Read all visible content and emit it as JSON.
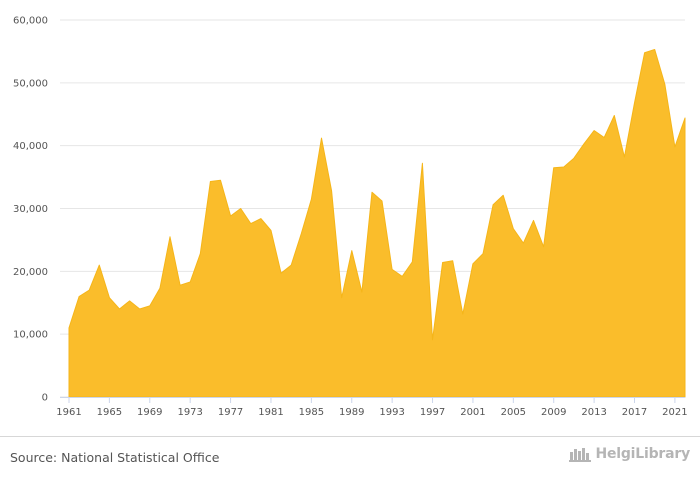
{
  "chart_data": {
    "type": "area",
    "x": [
      1961,
      1962,
      1963,
      1964,
      1965,
      1966,
      1967,
      1968,
      1969,
      1970,
      1971,
      1972,
      1973,
      1974,
      1975,
      1976,
      1977,
      1978,
      1979,
      1980,
      1981,
      1982,
      1983,
      1984,
      1985,
      1986,
      1987,
      1988,
      1989,
      1990,
      1991,
      1992,
      1993,
      1994,
      1995,
      1996,
      1997,
      1998,
      1999,
      2000,
      2001,
      2002,
      2003,
      2004,
      2005,
      2006,
      2007,
      2008,
      2009,
      2010,
      2011,
      2012,
      2013,
      2014,
      2015,
      2016,
      2017,
      2018,
      2019,
      2020,
      2021,
      2022
    ],
    "series": [
      {
        "values": [
          11000,
          16000,
          17000,
          21000,
          15800,
          14000,
          15300,
          14000,
          14500,
          17300,
          25500,
          17800,
          18300,
          22800,
          34300,
          34500,
          28800,
          30000,
          27600,
          28400,
          26500,
          19700,
          21000,
          26000,
          31500,
          41200,
          32800,
          15800,
          23300,
          16700,
          32600,
          31200,
          20300,
          19200,
          21500,
          37200,
          9100,
          21400,
          21700,
          13200,
          21200,
          22800,
          30600,
          32100,
          26800,
          24500,
          28100,
          23900,
          36500,
          36600,
          38000,
          40300,
          42400,
          41300,
          44800,
          38200,
          46800,
          54800,
          55300,
          49800,
          39800,
          44400
        ]
      }
    ],
    "x_ticks": [
      "1961",
      "1965",
      "1969",
      "1973",
      "1977",
      "1981",
      "1985",
      "1989",
      "1993",
      "1997",
      "2001",
      "2005",
      "2009",
      "2013",
      "2017",
      "2021"
    ],
    "y_ticks": [
      "0",
      "10,000",
      "20,000",
      "30,000",
      "40,000",
      "50,000",
      "60,000"
    ],
    "xlim": [
      1961,
      2022
    ],
    "ylim": [
      0,
      60000
    ],
    "grid": true,
    "colors": {
      "area_fill": "#fabd2b",
      "area_stroke": "#f5b519",
      "grid": "#e6e6e6",
      "axis_text": "#555555"
    }
  },
  "footer": {
    "source": "Source: National Statistical Office",
    "logo_text": "HelgiLibrary",
    "logo_icon": "helgi-library-logo-icon"
  }
}
